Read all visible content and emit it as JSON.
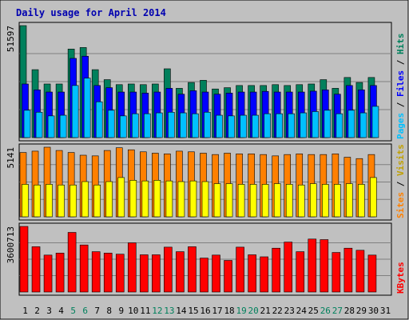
{
  "chart_data": {
    "type": "bar",
    "title": "Daily usage for April 2014",
    "colors": {
      "hits": "#00805c",
      "files": "#0000ff",
      "pages": "#00c0ff",
      "visits": "#ffff00",
      "sites": "#ff8000",
      "kbytes": "#ff0000",
      "weekend_label": "#00805c",
      "weekday_label": "#000000",
      "plot_bg": "#c0c0c0",
      "frame_bg": "#ffffff"
    },
    "categories": [
      "1",
      "2",
      "3",
      "4",
      "5",
      "6",
      "7",
      "8",
      "9",
      "10",
      "11",
      "12",
      "13",
      "14",
      "15",
      "16",
      "17",
      "18",
      "19",
      "20",
      "21",
      "22",
      "23",
      "24",
      "25",
      "26",
      "27",
      "28",
      "29",
      "30",
      "31"
    ],
    "weekend_days": [
      "5",
      "6",
      "12",
      "13",
      "19",
      "20",
      "26",
      "27"
    ],
    "panels": [
      {
        "id": "hits-files-pages",
        "max_label": "51597",
        "ymax": 51597,
        "right_labels": [
          {
            "text": "Pages",
            "color": "#00c0ff"
          },
          {
            "text": " / ",
            "color": "#000000"
          },
          {
            "text": "Files",
            "color": "#0000ff"
          },
          {
            "text": " / ",
            "color": "#000000"
          },
          {
            "text": "Hits",
            "color": "#00805c"
          }
        ],
        "series": [
          {
            "name": "Hits",
            "color": "#00805c",
            "values": [
              51597,
              31300,
              24700,
              24700,
              40800,
              41500,
              31300,
              26700,
              24400,
              24700,
              24400,
              24700,
              31700,
              22700,
              25400,
              26400,
              22400,
              23000,
              24000,
              24000,
              24000,
              24400,
              24000,
              24400,
              24700,
              26700,
              22700,
              27700,
              25400,
              27700,
              0
            ]
          },
          {
            "name": "Files",
            "color": "#0000ff",
            "values": [
              24700,
              22000,
              21000,
              21000,
              36500,
              37500,
              24000,
              23000,
              21000,
              21000,
              20500,
              21000,
              22700,
              20000,
              21600,
              21000,
              20000,
              20500,
              21000,
              21000,
              21300,
              21000,
              21000,
              21000,
              21400,
              22000,
              20000,
              24000,
              22000,
              24000,
              0
            ]
          },
          {
            "name": "Pages",
            "color": "#00c0ff",
            "values": [
              12600,
              11700,
              10000,
              10300,
              24000,
              27400,
              16500,
              12600,
              10000,
              11000,
              11000,
              11400,
              11700,
              11400,
              11000,
              11700,
              10300,
              10000,
              10300,
              10300,
              11000,
              11000,
              11000,
              11400,
              12000,
              12600,
              11000,
              12600,
              11400,
              14400,
              0
            ]
          }
        ]
      },
      {
        "id": "sites-visits",
        "max_label": "5141",
        "ymax": 5141,
        "right_labels": [
          {
            "text": "Sites",
            "color": "#ff8000"
          },
          {
            "text": " / ",
            "color": "#000000"
          },
          {
            "text": "Visits",
            "color": "#c0a000"
          }
        ],
        "series": [
          {
            "name": "Sites",
            "color": "#ff8000",
            "values": [
              4750,
              4850,
              5141,
              4900,
              4750,
              4550,
              4500,
              4900,
              5100,
              4950,
              4800,
              4700,
              4650,
              4850,
              4800,
              4700,
              4600,
              4700,
              4650,
              4650,
              4600,
              4500,
              4600,
              4650,
              4600,
              4600,
              4650,
              4400,
              4300,
              4600,
              0
            ]
          },
          {
            "name": "Visits",
            "color": "#ffff00",
            "values": [
              2400,
              2350,
              2400,
              2350,
              2350,
              2600,
              2350,
              2600,
              2900,
              2700,
              2650,
              2700,
              2650,
              2600,
              2650,
              2600,
              2450,
              2450,
              2400,
              2400,
              2400,
              2450,
              2400,
              2350,
              2450,
              2400,
              2400,
              2450,
              2400,
              2900,
              0
            ]
          }
        ]
      },
      {
        "id": "kbytes",
        "max_label": "3600713",
        "ymax": 3600713,
        "right_labels": [
          {
            "text": "KBytes",
            "color": "#ff0000"
          }
        ],
        "series": [
          {
            "name": "KBytes",
            "color": "#ff0000",
            "values": [
              3600713,
              2485000,
              2027000,
              2137000,
              3271000,
              2582000,
              2214000,
              2137000,
              2076000,
              2699000,
              2043000,
              2043000,
              2463000,
              2214000,
              2485000,
              1863000,
              2027000,
              1734000,
              2463000,
              2043000,
              1932000,
              2405000,
              2741000,
              2214000,
              2907000,
              2876000,
              2171000,
              2405000,
              2291000,
              2027000,
              0
            ]
          }
        ]
      }
    ]
  }
}
